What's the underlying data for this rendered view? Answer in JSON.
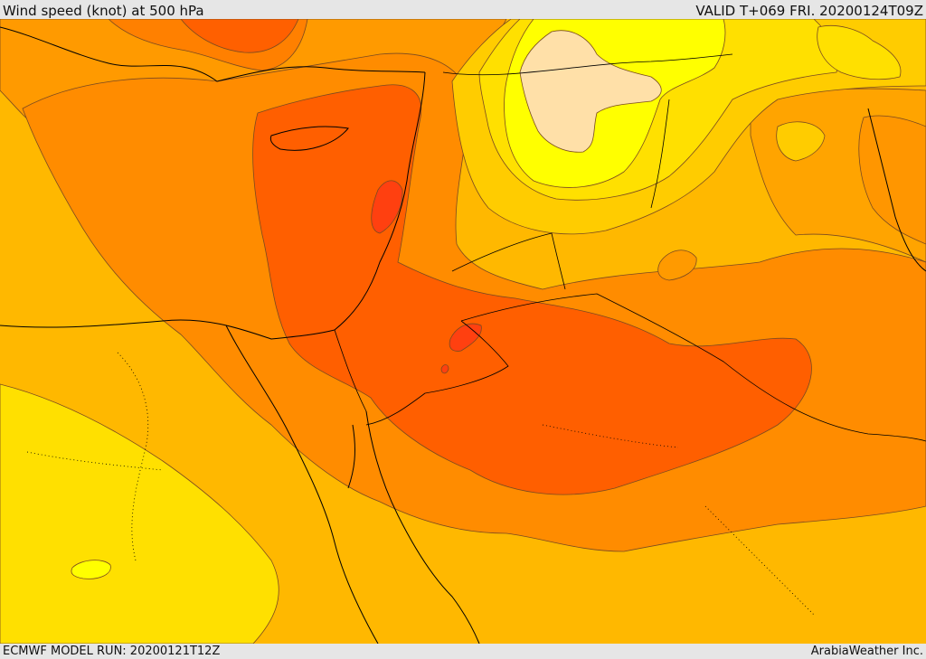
{
  "header": {
    "title": "Wind speed (knot) at 500 hPa",
    "valid": "VALID T+069 FRI. 20200124T09Z"
  },
  "footer": {
    "model_run": "ECMWF MODEL RUN: 20200121T12Z",
    "credit": "ArabiaWeather Inc."
  },
  "map": {
    "variable": "wind speed",
    "level": "500 hPa",
    "units": "knot",
    "colors": {
      "sea_background": "#ffb800",
      "band_light_yellow": "#ffe000",
      "band_bright_yellow": "#ffff00",
      "band_cream": "#ffe0a8",
      "band_orange": "#ff9a00",
      "band_dark_orange": "#ff8000",
      "band_red_orange": "#ff6000",
      "band_core_red": "#ff4010",
      "contour_line": "#7a4a20",
      "border_line": "#000000"
    }
  }
}
